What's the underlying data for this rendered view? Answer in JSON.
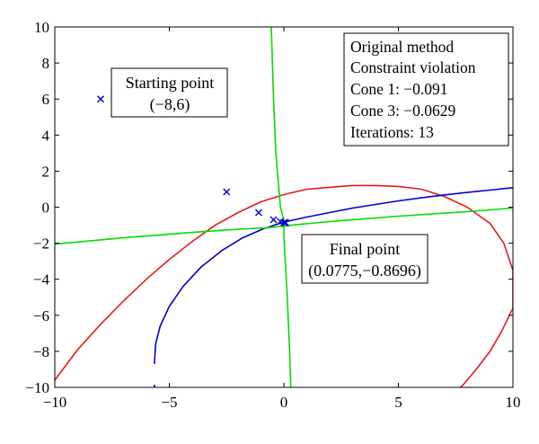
{
  "chart_data": {
    "type": "line",
    "title": "",
    "xlabel": "",
    "ylabel": "",
    "xlim": [
      -10,
      10
    ],
    "ylim": [
      -10,
      10
    ],
    "xticks": [
      -10,
      -5,
      0,
      5,
      10
    ],
    "yticks": [
      -10,
      -8,
      -6,
      -4,
      -2,
      0,
      2,
      4,
      6,
      8,
      10
    ],
    "xtick_labels": [
      "−10",
      "−5",
      "0",
      "5",
      "10"
    ],
    "ytick_labels": [
      "−10",
      "−8",
      "−6",
      "−4",
      "−2",
      "0",
      "2",
      "4",
      "6",
      "8",
      "10"
    ],
    "grid": false,
    "series": [
      {
        "color": "#e41a1c",
        "segments": [
          [
            [
              -10,
              -9.6
            ],
            [
              -9,
              -7.9
            ],
            [
              -8,
              -6.5
            ],
            [
              -7,
              -5.2
            ],
            [
              -6,
              -4.0
            ],
            [
              -5,
              -2.9
            ],
            [
              -4,
              -1.9
            ],
            [
              -3,
              -1.0
            ],
            [
              -2,
              -0.3
            ],
            [
              -1,
              0.3
            ],
            [
              0,
              0.7
            ],
            [
              1,
              1.0
            ],
            [
              2,
              1.1
            ],
            [
              3,
              1.2
            ],
            [
              4,
              1.2
            ],
            [
              5,
              1.15
            ],
            [
              6,
              1.0
            ],
            [
              7,
              0.6
            ],
            [
              8,
              0.0
            ],
            [
              9,
              -0.9
            ],
            [
              9.6,
              -2.0
            ],
            [
              10,
              -3.5
            ],
            [
              10,
              -5.6
            ]
          ],
          [
            [
              10,
              -5.6
            ],
            [
              9.5,
              -6.9
            ],
            [
              9,
              -8.0
            ],
            [
              8.4,
              -9.0
            ],
            [
              7.8,
              -9.9
            ],
            [
              7.7,
              -10
            ]
          ]
        ]
      },
      {
        "color": "#0000cc",
        "segments": [
          [
            [
              -5.65,
              -8.7
            ],
            [
              -5.6,
              -7.6
            ],
            [
              -5.4,
              -6.6
            ],
            [
              -5.0,
              -5.5
            ],
            [
              -4.4,
              -4.4
            ],
            [
              -3.6,
              -3.3
            ],
            [
              -2.7,
              -2.4
            ],
            [
              -1.8,
              -1.7
            ],
            [
              -0.9,
              -1.2
            ],
            [
              -0.3,
              -0.95
            ],
            [
              0.1,
              -0.8
            ],
            [
              1,
              -0.55
            ],
            [
              2,
              -0.3
            ],
            [
              3,
              -0.05
            ],
            [
              4,
              0.15
            ],
            [
              5,
              0.35
            ],
            [
              6,
              0.52
            ],
            [
              7,
              0.68
            ],
            [
              8,
              0.82
            ],
            [
              9,
              0.95
            ],
            [
              10,
              1.08
            ]
          ],
          [
            [
              -5.65,
              -9.85
            ],
            [
              -5.65,
              -10
            ]
          ]
        ]
      },
      {
        "color": "#00dd00",
        "segments": [
          [
            [
              -0.55,
              10
            ],
            [
              -0.45,
              6
            ],
            [
              -0.35,
              3
            ],
            [
              -0.25,
              1.5
            ],
            [
              -0.15,
              0.0
            ],
            [
              -0.05,
              -0.5
            ],
            [
              0.0,
              -0.7
            ]
          ],
          [
            [
              0.0,
              -0.7
            ],
            [
              0.0,
              -1.6
            ],
            [
              0.15,
              -5
            ],
            [
              0.25,
              -8
            ],
            [
              0.3,
              -10
            ]
          ],
          [
            [
              -10,
              -2.05
            ],
            [
              -7,
              -1.7
            ],
            [
              -4,
              -1.4
            ],
            [
              -2,
              -1.22
            ],
            [
              -0.8,
              -1.15
            ],
            [
              -0.4,
              -1.1
            ],
            [
              0.3,
              -1.0
            ],
            [
              2,
              -0.8
            ],
            [
              5,
              -0.5
            ],
            [
              8,
              -0.25
            ],
            [
              10,
              -0.05
            ]
          ]
        ]
      }
    ],
    "iterates": [
      [
        -8,
        6
      ],
      [
        -2.5,
        0.85
      ],
      [
        -1.1,
        -0.3
      ],
      [
        -0.45,
        -0.7
      ],
      [
        -0.15,
        -0.8
      ],
      [
        0.0,
        -0.85
      ],
      [
        0.05,
        -0.86
      ],
      [
        0.0775,
        -0.8696
      ],
      [
        0.0775,
        -0.8696
      ]
    ],
    "iterate_color": "#0000cc",
    "annotations": {
      "start_line1": "Starting point",
      "start_line2": "(−8,6)",
      "final_line1": "Final point",
      "final_line2": "(0.0775,−0.8696)"
    },
    "info_box": [
      "Original method",
      "Constraint violation",
      "Cone 1: −0.091",
      "Cone 3: −0.0629",
      "Iterations: 13"
    ]
  }
}
